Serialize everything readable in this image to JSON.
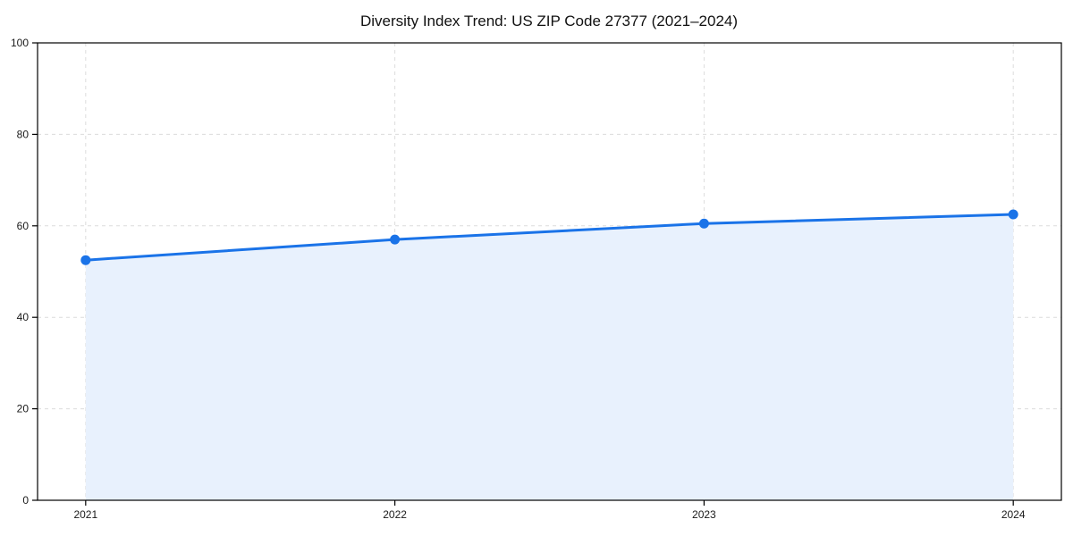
{
  "chart_data": {
    "type": "area",
    "title": "Diversity Index Trend: US ZIP Code 27377 (2021–2024)",
    "x": [
      "2021",
      "2022",
      "2023",
      "2024"
    ],
    "series": [
      {
        "name": "Diversity Index",
        "values": [
          52.5,
          57.0,
          60.5,
          62.5
        ]
      }
    ],
    "xlabel": "",
    "ylabel": "",
    "ylim": [
      0,
      100
    ],
    "yticks": [
      0,
      20,
      40,
      60,
      80,
      100
    ],
    "grid": true,
    "grid_style": "dashed",
    "legend": false,
    "colors": {
      "line": "#1a73e8",
      "marker": "#1a73e8",
      "fill": "#e8f1fd",
      "grid": "#dcdcdc",
      "axis": "#000000",
      "text": "#1a1a1a",
      "background": "#ffffff"
    }
  }
}
